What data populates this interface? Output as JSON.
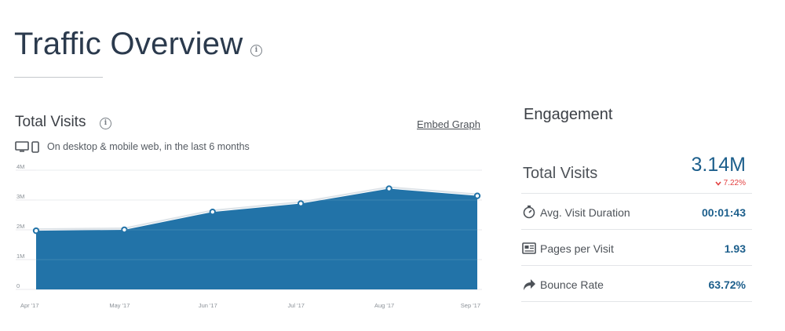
{
  "header": {
    "title": "Traffic Overview"
  },
  "total_visits_card": {
    "title": "Total Visits",
    "embed_link": "Embed Graph",
    "subtitle": "On desktop & mobile web, in the last 6 months"
  },
  "chart_data": {
    "type": "area",
    "categories": [
      "Apr '17",
      "May '17",
      "Jun '17",
      "Jul '17",
      "Aug '17",
      "Sep '17"
    ],
    "series": [
      {
        "values": [
          1.97,
          2.0,
          2.6,
          2.88,
          3.38,
          3.14
        ]
      }
    ],
    "y_ticks": [
      "0",
      "1M",
      "2M",
      "3M",
      "4M"
    ],
    "ylim": [
      0,
      4
    ],
    "ylabel": "",
    "xlabel": "",
    "grid": true,
    "color": "#2273a8",
    "unit": "M"
  },
  "engagement": {
    "title": "Engagement",
    "total_visits_label": "Total Visits",
    "total_visits_value": "3.14M",
    "total_visits_change": "7.22%",
    "change_direction": "down",
    "change_color": "#e24040",
    "metrics": [
      {
        "icon": "stopwatch-icon",
        "label": "Avg. Visit Duration",
        "value": "00:01:43"
      },
      {
        "icon": "pages-icon",
        "label": "Pages per Visit",
        "value": "1.93"
      },
      {
        "icon": "bounce-arrow-icon",
        "label": "Bounce Rate",
        "value": "63.72%"
      }
    ],
    "accent_color": "#1d5f8c"
  }
}
